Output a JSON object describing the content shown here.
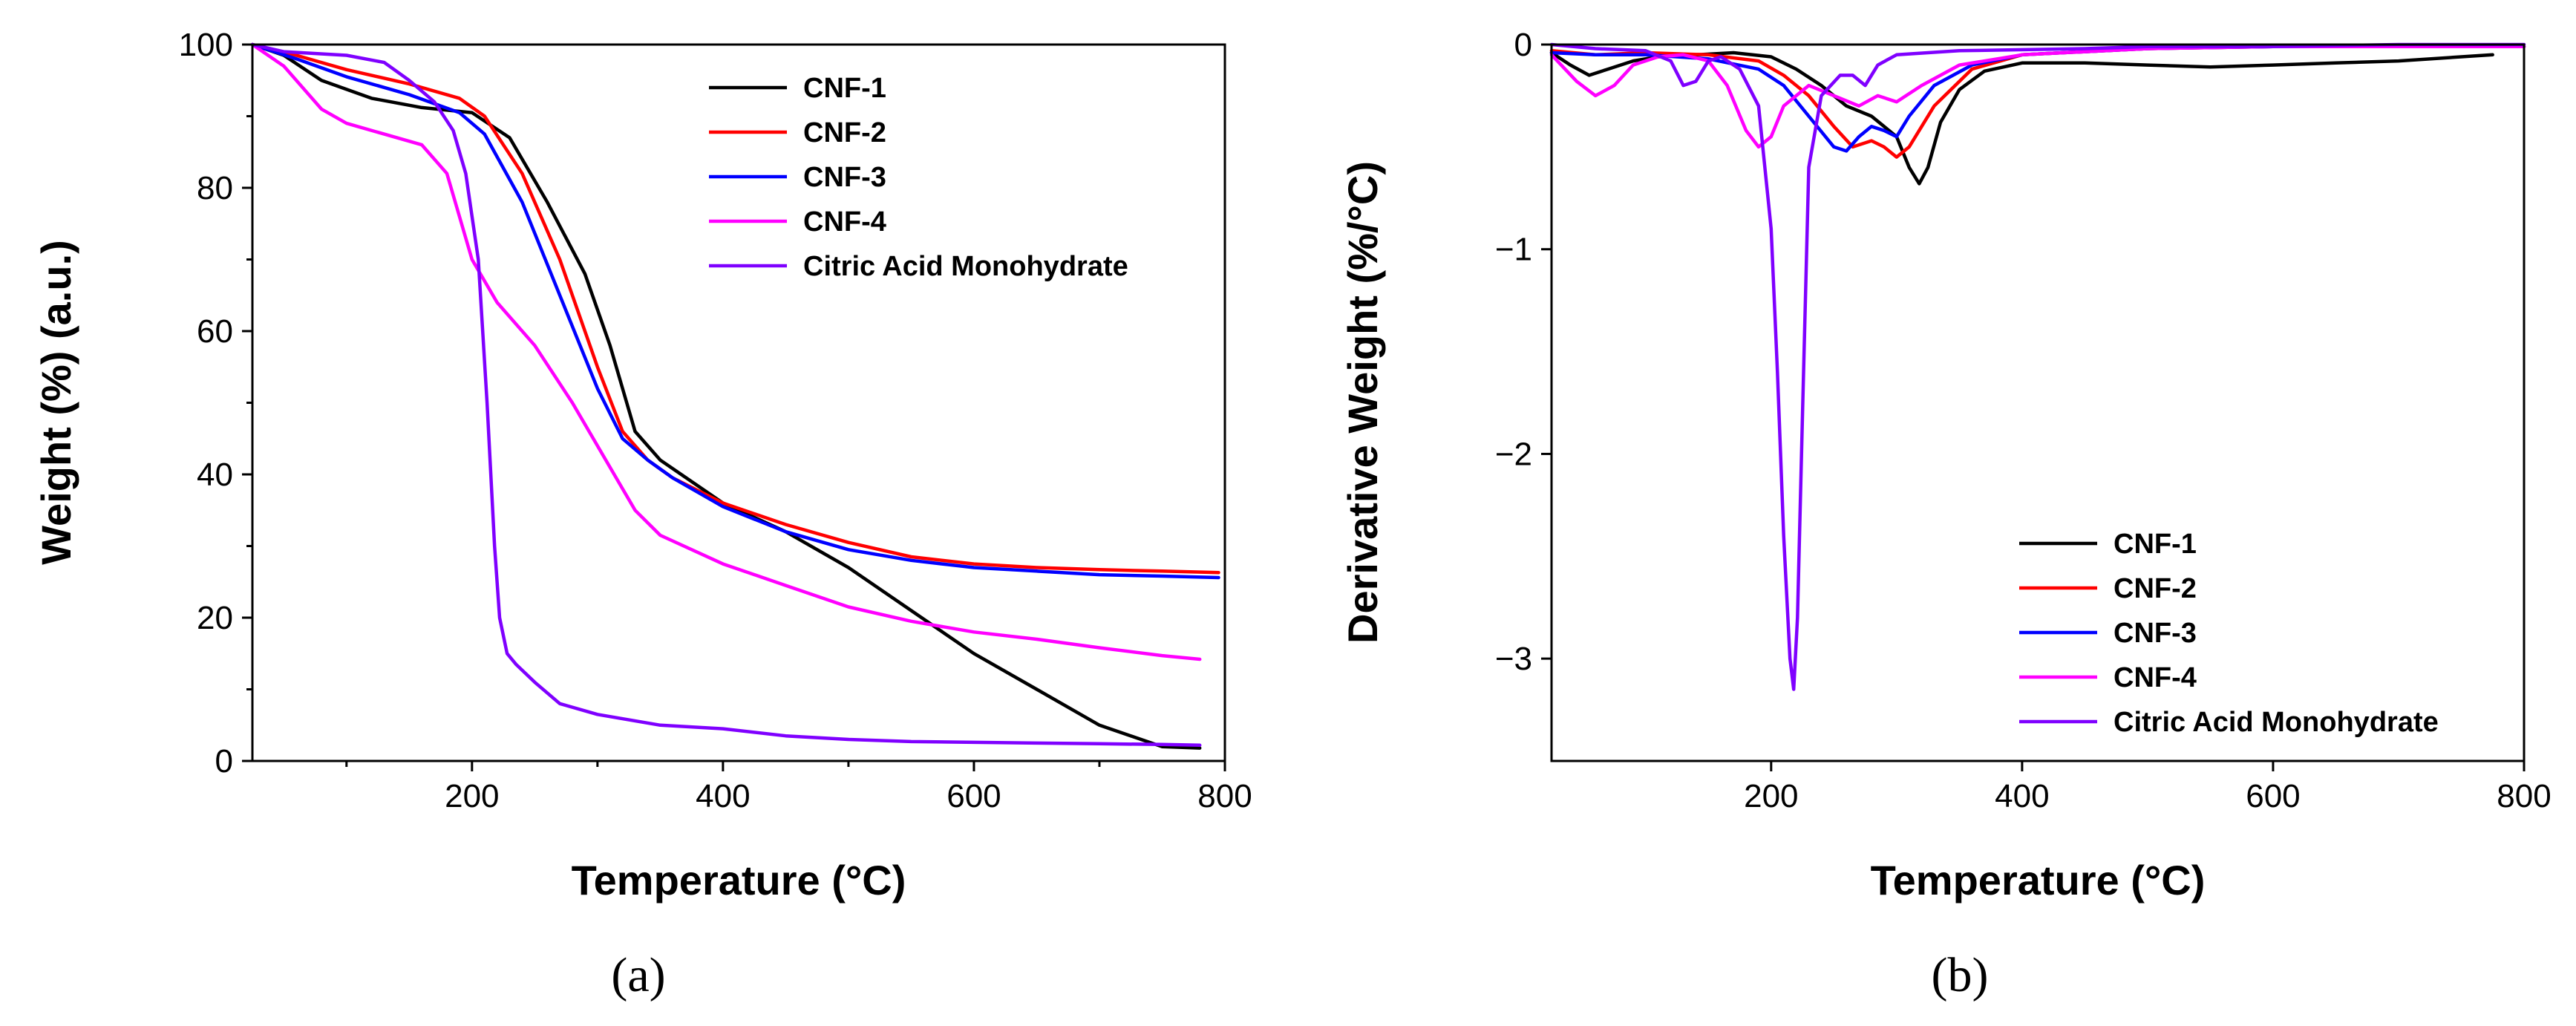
{
  "colors": {
    "CNF-1": "#000000",
    "CNF-2": "#ff0000",
    "CNF-3": "#0000ff",
    "CNF-4": "#ff00ff",
    "Citric Acid Monohydrate": "#7f00ff"
  },
  "chart_data": [
    {
      "type": "line",
      "panel_label": "(a)",
      "title": "",
      "xlabel": "Temperature (°C)",
      "ylabel": "Weight (%) (a.u.)",
      "xlim": [
        25,
        800
      ],
      "ylim": [
        0,
        100
      ],
      "xticks": [
        200,
        400,
        600,
        800
      ],
      "xtick_labels": [
        "200",
        "400",
        "600",
        "800"
      ],
      "yticks": [
        0,
        20,
        40,
        60,
        80,
        100
      ],
      "ytick_labels": [
        "0",
        "20",
        "40",
        "60",
        "80",
        "100"
      ],
      "legend_position": "top-right",
      "legend": [
        "CNF-1",
        "CNF-2",
        "CNF-3",
        "CNF-4",
        "Citric Acid Monohydrate"
      ],
      "series": [
        {
          "name": "CNF-1",
          "x": [
            25,
            50,
            80,
            120,
            160,
            200,
            230,
            260,
            290,
            310,
            330,
            350,
            400,
            450,
            500,
            550,
            600,
            650,
            700,
            750,
            780
          ],
          "y": [
            100,
            98.5,
            95,
            92.5,
            91.2,
            90.5,
            87,
            78,
            68,
            58,
            46,
            42,
            36,
            32,
            27,
            21,
            15,
            10,
            5,
            2,
            1.8
          ]
        },
        {
          "name": "CNF-2",
          "x": [
            25,
            60,
            100,
            150,
            190,
            210,
            240,
            270,
            300,
            320,
            340,
            360,
            400,
            450,
            500,
            550,
            600,
            650,
            700,
            750,
            795
          ],
          "y": [
            100,
            98.5,
            96.5,
            94.5,
            92.5,
            90,
            82,
            70,
            55,
            46,
            42,
            39.5,
            36,
            33,
            30.5,
            28.5,
            27.5,
            27,
            26.7,
            26.5,
            26.3
          ]
        },
        {
          "name": "CNF-3",
          "x": [
            25,
            60,
            100,
            150,
            190,
            210,
            240,
            270,
            300,
            320,
            340,
            360,
            400,
            450,
            500,
            550,
            600,
            650,
            700,
            750,
            795
          ],
          "y": [
            100,
            98,
            95.5,
            93,
            90.5,
            87.5,
            78,
            65,
            52,
            45,
            42,
            39.5,
            35.5,
            32,
            29.5,
            28,
            27,
            26.5,
            26,
            25.8,
            25.6
          ]
        },
        {
          "name": "CNF-4",
          "x": [
            25,
            50,
            80,
            100,
            130,
            160,
            180,
            200,
            220,
            250,
            280,
            310,
            330,
            350,
            400,
            450,
            500,
            550,
            600,
            650,
            700,
            750,
            780
          ],
          "y": [
            100,
            97,
            91,
            89,
            87.5,
            86,
            82,
            70,
            64,
            58,
            50,
            41,
            35,
            31.5,
            27.5,
            24.5,
            21.5,
            19.5,
            18,
            17,
            15.8,
            14.7,
            14.2
          ]
        },
        {
          "name": "Citric Acid Monohydrate",
          "x": [
            25,
            50,
            100,
            130,
            150,
            170,
            185,
            195,
            205,
            212,
            218,
            222,
            228,
            235,
            250,
            270,
            300,
            350,
            400,
            450,
            500,
            550,
            600,
            650,
            700,
            750,
            780
          ],
          "y": [
            100,
            99,
            98.5,
            97.5,
            95,
            92,
            88,
            82,
            70,
            50,
            30,
            20,
            15,
            13.5,
            11,
            8,
            6.5,
            5,
            4.5,
            3.5,
            3,
            2.7,
            2.6,
            2.5,
            2.4,
            2.3,
            2.2
          ]
        }
      ]
    },
    {
      "type": "line",
      "panel_label": "(b)",
      "title": "",
      "xlabel": "Temperature (°C)",
      "ylabel": "Derivative Weight (%/°C)",
      "xlim": [
        25,
        800
      ],
      "ylim": [
        -3.5,
        0
      ],
      "xticks": [
        200,
        400,
        600,
        800
      ],
      "xtick_labels": [
        "200",
        "400",
        "600",
        "800"
      ],
      "yticks": [
        0,
        -1,
        -2,
        -3
      ],
      "ytick_labels": [
        "0",
        "−1",
        "−2",
        "−3"
      ],
      "legend_position": "bottom-right",
      "legend": [
        "CNF-1",
        "CNF-2",
        "CNF-3",
        "CNF-4",
        "Citric Acid Monohydrate"
      ],
      "series": [
        {
          "name": "CNF-1",
          "x": [
            25,
            40,
            55,
            70,
            90,
            110,
            140,
            170,
            200,
            220,
            240,
            260,
            280,
            300,
            310,
            318,
            325,
            335,
            350,
            370,
            400,
            450,
            500,
            550,
            600,
            650,
            700,
            750,
            775
          ],
          "y": [
            -0.04,
            -0.1,
            -0.15,
            -0.12,
            -0.08,
            -0.06,
            -0.05,
            -0.04,
            -0.06,
            -0.12,
            -0.2,
            -0.3,
            -0.35,
            -0.45,
            -0.6,
            -0.68,
            -0.6,
            -0.38,
            -0.22,
            -0.13,
            -0.09,
            -0.09,
            -0.1,
            -0.11,
            -0.1,
            -0.09,
            -0.08,
            -0.06,
            -0.05
          ]
        },
        {
          "name": "CNF-2",
          "x": [
            25,
            60,
            100,
            150,
            190,
            210,
            230,
            250,
            265,
            280,
            290,
            300,
            310,
            330,
            360,
            400,
            500,
            600,
            700,
            800
          ],
          "y": [
            -0.03,
            -0.05,
            -0.04,
            -0.05,
            -0.08,
            -0.15,
            -0.25,
            -0.4,
            -0.5,
            -0.47,
            -0.5,
            -0.55,
            -0.5,
            -0.3,
            -0.12,
            -0.05,
            -0.02,
            -0.01,
            -0.01,
            -0.01
          ]
        },
        {
          "name": "CNF-3",
          "x": [
            25,
            60,
            100,
            150,
            190,
            210,
            230,
            250,
            260,
            270,
            280,
            290,
            300,
            310,
            330,
            360,
            400,
            500,
            600,
            700,
            800
          ],
          "y": [
            -0.04,
            -0.05,
            -0.05,
            -0.07,
            -0.12,
            -0.2,
            -0.35,
            -0.5,
            -0.52,
            -0.45,
            -0.4,
            -0.42,
            -0.45,
            -0.35,
            -0.2,
            -0.1,
            -0.05,
            -0.02,
            -0.01,
            -0.01,
            -0.01
          ]
        },
        {
          "name": "CNF-4",
          "x": [
            25,
            45,
            60,
            75,
            90,
            110,
            130,
            150,
            165,
            180,
            190,
            200,
            210,
            230,
            250,
            270,
            285,
            300,
            320,
            350,
            400,
            500,
            600,
            700,
            800
          ],
          "y": [
            -0.05,
            -0.18,
            -0.25,
            -0.2,
            -0.1,
            -0.06,
            -0.05,
            -0.08,
            -0.2,
            -0.42,
            -0.5,
            -0.45,
            -0.3,
            -0.2,
            -0.25,
            -0.3,
            -0.25,
            -0.28,
            -0.2,
            -0.1,
            -0.05,
            -0.02,
            -0.01,
            -0.01,
            -0.01
          ]
        },
        {
          "name": "Citric Acid Monohydrate",
          "x": [
            25,
            60,
            100,
            120,
            130,
            140,
            150,
            160,
            175,
            190,
            200,
            205,
            210,
            215,
            218,
            221,
            225,
            230,
            240,
            255,
            265,
            275,
            285,
            300,
            350,
            450,
            500,
            600,
            700,
            800
          ],
          "y": [
            0,
            -0.02,
            -0.03,
            -0.08,
            -0.2,
            -0.18,
            -0.08,
            -0.06,
            -0.12,
            -0.3,
            -0.9,
            -1.6,
            -2.4,
            -3.0,
            -3.15,
            -2.8,
            -1.8,
            -0.6,
            -0.25,
            -0.15,
            -0.15,
            -0.2,
            -0.1,
            -0.05,
            -0.03,
            -0.02,
            -0.01,
            -0.01,
            0,
            0
          ]
        }
      ]
    }
  ]
}
